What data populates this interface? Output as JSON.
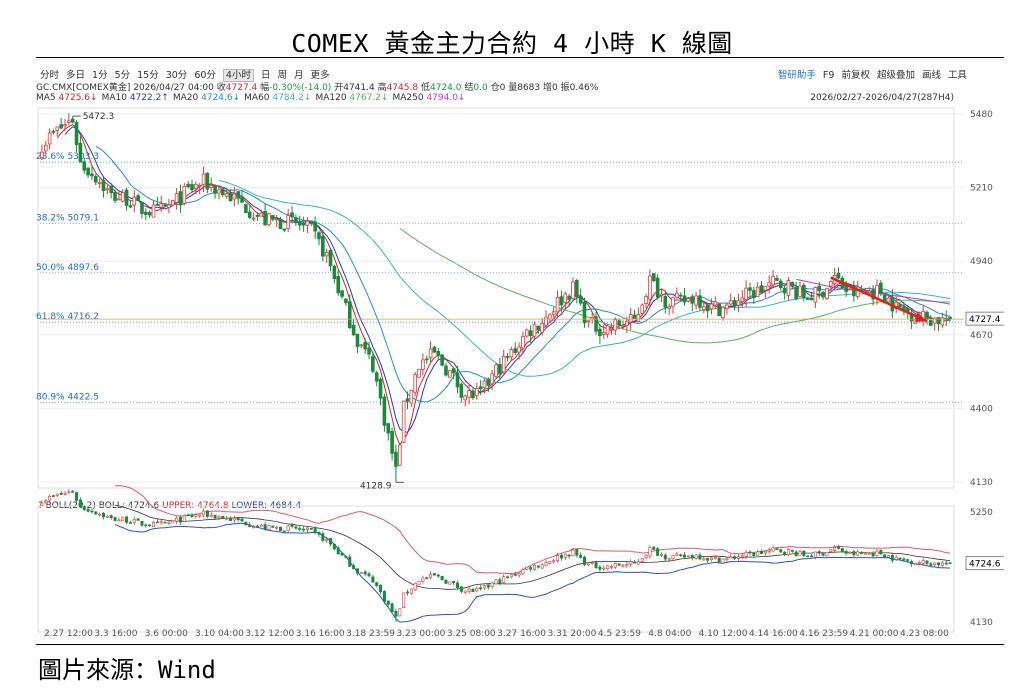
{
  "title": "COMEX 黃金主力合約 4 小時 K 線圖",
  "source": "圖片來源：Wind",
  "toolbar": {
    "periods": [
      "分时",
      "多日",
      "1分",
      "5分",
      "15分",
      "30分",
      "60分",
      "4小时",
      "日",
      "周",
      "月",
      "更多"
    ],
    "active_period": "4小时",
    "right_items": [
      "智研助手",
      "F9",
      "前复权",
      "超级叠加",
      "画线",
      "工具"
    ]
  },
  "quote": {
    "symbol": "GC.CMX[COMEX黄金]",
    "datetime": "2026/04/27 04:00",
    "close_label": "收",
    "close": "4727.4",
    "change_label": "幅",
    "change": "-0.30%(-14.0)",
    "open_label": "开",
    "open": "4741.4",
    "high_label": "高",
    "high": "4745.8",
    "low_label": "低",
    "low": "4724.0",
    "settle_label": "结",
    "settle": "0.0",
    "oi_label": "仓",
    "oi": "0",
    "vol_label": "量",
    "vol": "8683",
    "inc_label": "增",
    "inc": "0",
    "amp_label": "振",
    "amp": "0.46%"
  },
  "ma": [
    {
      "label": "MA5",
      "value": "4725.6↓",
      "color": "#d9232e"
    },
    {
      "label": "MA10",
      "value": "4722.2↑",
      "color": "#1f3fbf"
    },
    {
      "label": "MA20",
      "value": "4724.6↓",
      "color": "#1f8fd0"
    },
    {
      "label": "MA60",
      "value": "4784.2↓",
      "color": "#35b7c9"
    },
    {
      "label": "MA120",
      "value": "4767.2↓",
      "color": "#56b75a"
    },
    {
      "label": "MA250",
      "value": "4794.0↓",
      "color": "#c03ad6"
    }
  ],
  "range_label": "2026/02/27-2026/04/27(287H4)",
  "boll": {
    "prefix": "?",
    "label": "BOLL(20,2)",
    "mid": "BOLL: 4724.6",
    "upper": "UPPER: 4764.8",
    "lower": "LOWER: 4684.4",
    "last_label": "4724.6"
  },
  "chart_data": {
    "type": "candlestick",
    "last_price_label": "4727.4",
    "price_axis": {
      "ylim": [
        4130,
        5480
      ],
      "ticks": [
        5480,
        5210,
        4940,
        4670,
        4400,
        4130
      ]
    },
    "boll_axis": {
      "ylim": [
        4130,
        5250
      ],
      "ticks": [
        5250,
        4130
      ]
    },
    "x_ticks": [
      "2.27 12:00",
      "3.3 16:00",
      "3.6 00:00",
      "3.10 04:00",
      "3.12 12:00",
      "3.16 16:00",
      "3.18 23:59",
      "3.23 00:00",
      "3.25 08:00",
      "3.27 16:00",
      "3.31 20:00",
      "4.5 23:59",
      "4.8 04:00",
      "4.10 12:00",
      "4.14 16:00",
      "4.16 23:59",
      "4.21 00:00",
      "4.23 08:00"
    ],
    "annotations": [
      {
        "label": "5472.3",
        "value": 5472.3,
        "type": "high"
      },
      {
        "label": "4128.9",
        "value": 4128.9,
        "type": "low"
      }
    ],
    "fib_levels": [
      {
        "label": "23.6%",
        "price": "5303.3",
        "value": 5303.3
      },
      {
        "label": "38.2%",
        "price": "5079.1",
        "value": 5079.1
      },
      {
        "label": "50.0%",
        "price": "4897.6",
        "value": 4897.6
      },
      {
        "label": "61.8%",
        "price": "4716.2",
        "value": 4716.2
      },
      {
        "label": "80.9%",
        "price": "4422.5",
        "value": 4422.5
      }
    ],
    "path_points": [
      [
        0,
        5370
      ],
      [
        4,
        5420
      ],
      [
        8,
        5460
      ],
      [
        10,
        5300
      ],
      [
        14,
        5250
      ],
      [
        18,
        5180
      ],
      [
        22,
        5170
      ],
      [
        26,
        5130
      ],
      [
        30,
        5120
      ],
      [
        34,
        5150
      ],
      [
        38,
        5200
      ],
      [
        42,
        5230
      ],
      [
        46,
        5200
      ],
      [
        50,
        5170
      ],
      [
        54,
        5130
      ],
      [
        58,
        5090
      ],
      [
        62,
        5085
      ],
      [
        66,
        5080
      ],
      [
        70,
        5050
      ],
      [
        74,
        4960
      ],
      [
        78,
        4800
      ],
      [
        82,
        4650
      ],
      [
        86,
        4560
      ],
      [
        90,
        4300
      ],
      [
        92,
        4170
      ],
      [
        94,
        4400
      ],
      [
        98,
        4560
      ],
      [
        102,
        4600
      ],
      [
        106,
        4530
      ],
      [
        110,
        4450
      ],
      [
        114,
        4450
      ],
      [
        118,
        4540
      ],
      [
        122,
        4600
      ],
      [
        126,
        4680
      ],
      [
        130,
        4720
      ],
      [
        134,
        4790
      ],
      [
        138,
        4840
      ],
      [
        142,
        4710
      ],
      [
        146,
        4690
      ],
      [
        150,
        4710
      ],
      [
        154,
        4720
      ],
      [
        158,
        4870
      ],
      [
        162,
        4800
      ],
      [
        166,
        4790
      ],
      [
        170,
        4810
      ],
      [
        174,
        4770
      ],
      [
        178,
        4770
      ],
      [
        182,
        4810
      ],
      [
        186,
        4830
      ],
      [
        190,
        4860
      ],
      [
        194,
        4850
      ],
      [
        198,
        4810
      ],
      [
        202,
        4820
      ],
      [
        206,
        4880
      ],
      [
        210,
        4820
      ],
      [
        214,
        4830
      ],
      [
        218,
        4830
      ],
      [
        222,
        4770
      ],
      [
        226,
        4750
      ],
      [
        230,
        4730
      ],
      [
        234,
        4725
      ],
      [
        236,
        4727.4
      ]
    ],
    "n_bars": 237
  }
}
